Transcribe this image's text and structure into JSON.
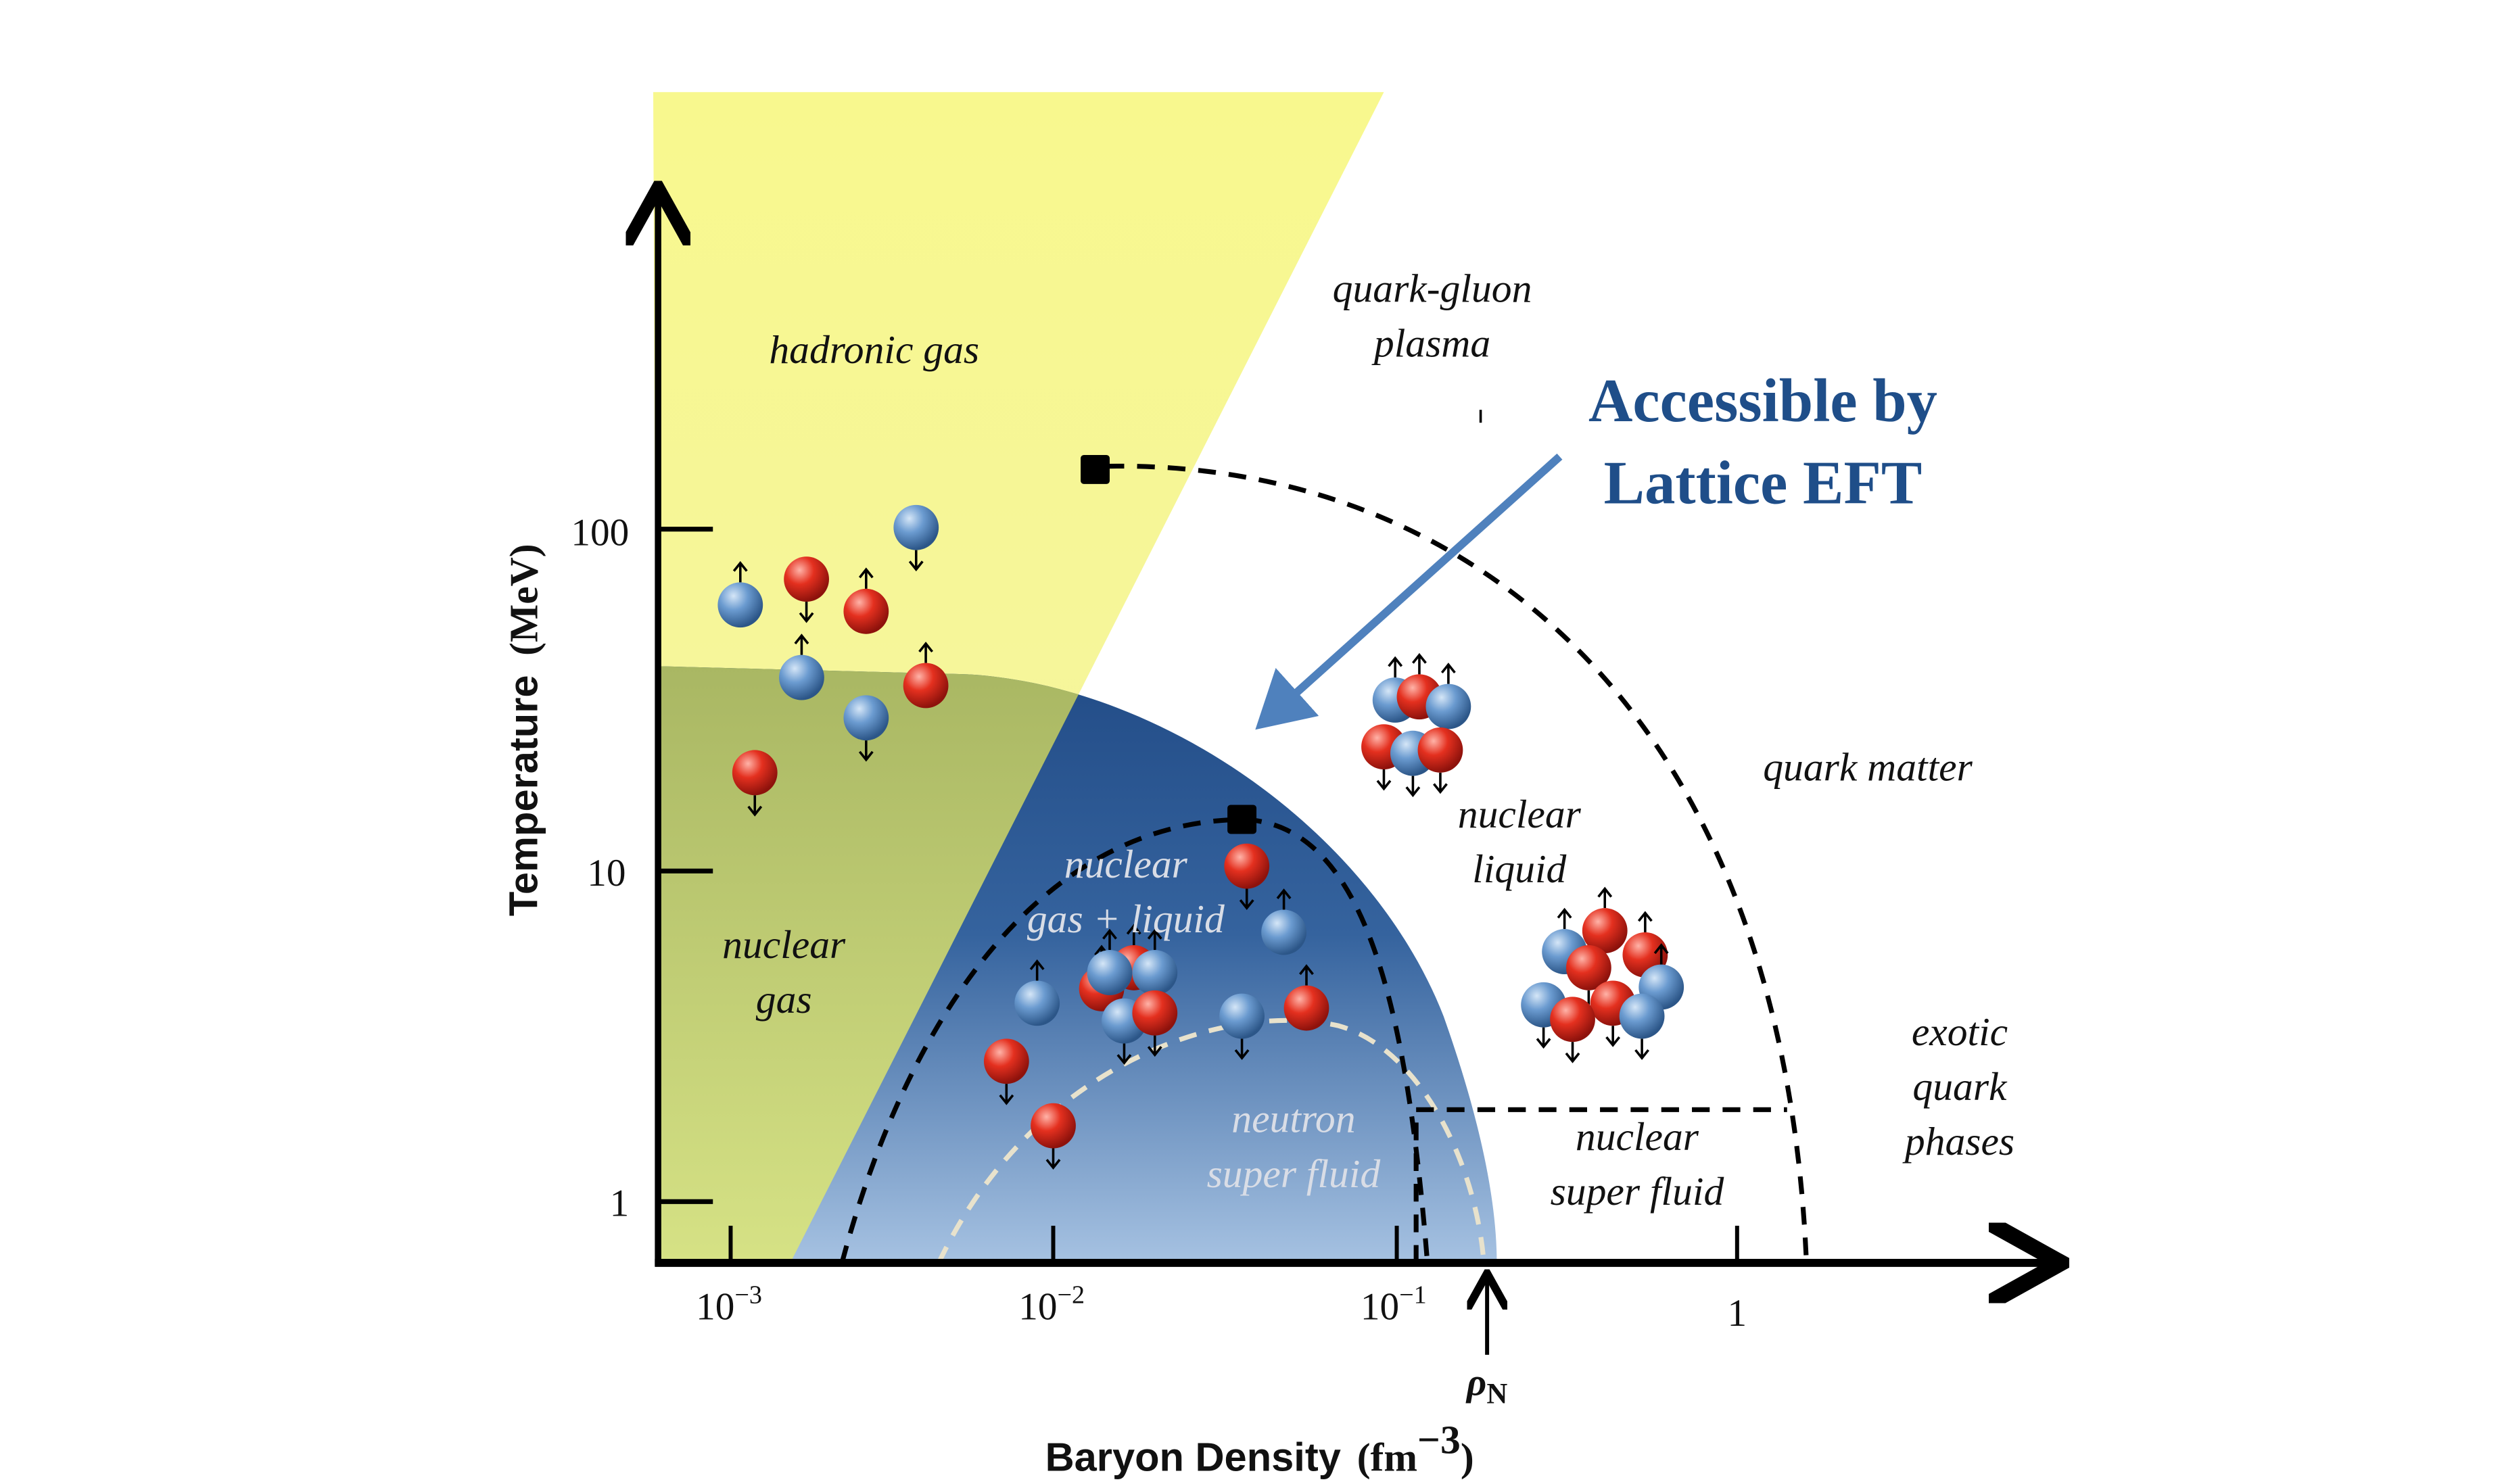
{
  "axes": {
    "x_label": "Baryon Density",
    "x_unit": "(fm",
    "x_unit_exp": "−3",
    "x_unit_close": ")",
    "y_label": "Temperature",
    "y_unit": "(MeV)",
    "x_scale": "log",
    "y_scale": "log",
    "x_ticks": [
      {
        "base": "10",
        "exp": "−3"
      },
      {
        "base": "10",
        "exp": "−2"
      },
      {
        "base": "10",
        "exp": "−1"
      },
      {
        "base": "1",
        "exp": ""
      }
    ],
    "y_ticks": [
      "100",
      "10",
      "1"
    ],
    "rho_marker": {
      "symbol": "ρ",
      "sub": "N"
    }
  },
  "regions": {
    "hadronic_gas": "hadronic gas",
    "qgp_1": "quark-gluon",
    "qgp_2": "plasma",
    "quark_matter": "quark matter",
    "nuclear_liquid_1": "nuclear",
    "nuclear_liquid_2": "liquid",
    "gas_liquid_1": "nuclear",
    "gas_liquid_2": "gas + liquid",
    "nuclear_gas_1": "nuclear",
    "nuclear_gas_2": "gas",
    "neutron_sf_1": "neutron",
    "neutron_sf_2": "super fluid",
    "nuclear_sf_1": "nuclear",
    "nuclear_sf_2": "super fluid",
    "exotic_1": "exotic",
    "exotic_2": "quark",
    "exotic_3": "phases"
  },
  "callout": {
    "line1": "Accessible by",
    "line2": "Lattice EFT",
    "color": "#1f4e89",
    "arrow_color": "#4f81bd"
  },
  "colors": {
    "hadronic_gas": "#f6f68c",
    "nuclear_gas": "#b9c56c",
    "dome_top": "#254f8a",
    "dome_bottom": "#a3bfe0",
    "proton": "#d8261c",
    "neutron": "#5b8fc9"
  }
}
